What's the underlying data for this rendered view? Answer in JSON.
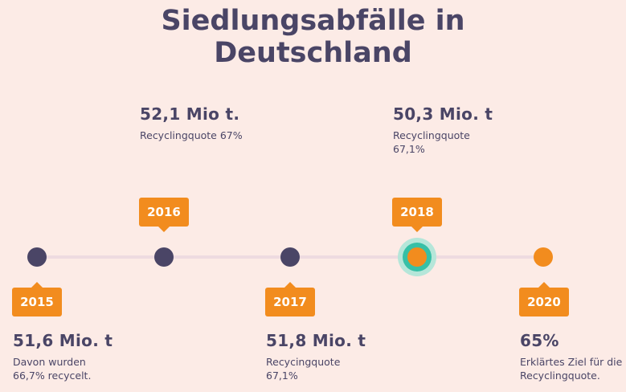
{
  "title": {
    "line1": "Siedlungsabfälle in",
    "line2": "Deutschland"
  },
  "colors": {
    "background": "#fcebe6",
    "dark": "#4a4566",
    "accent": "#f28c1e",
    "highlight": "#36c0a6"
  },
  "milestones": [
    {
      "year": "2015",
      "value": "51,6 Mio. t",
      "note": "Davon wurden\n66,7% recycelt."
    },
    {
      "year": "2016",
      "value": "52,1 Mio t.",
      "note": "Recyclingquote 67%"
    },
    {
      "year": "2017",
      "value": "51,8 Mio. t",
      "note": "Recycingquote\n67,1%"
    },
    {
      "year": "2018",
      "value": "50,3 Mio. t",
      "note": "Recyclingquote\n67,1%"
    },
    {
      "year": "2020",
      "value": "65%",
      "note": "Erklärtes Ziel für die\nRecyclingquote."
    }
  ]
}
